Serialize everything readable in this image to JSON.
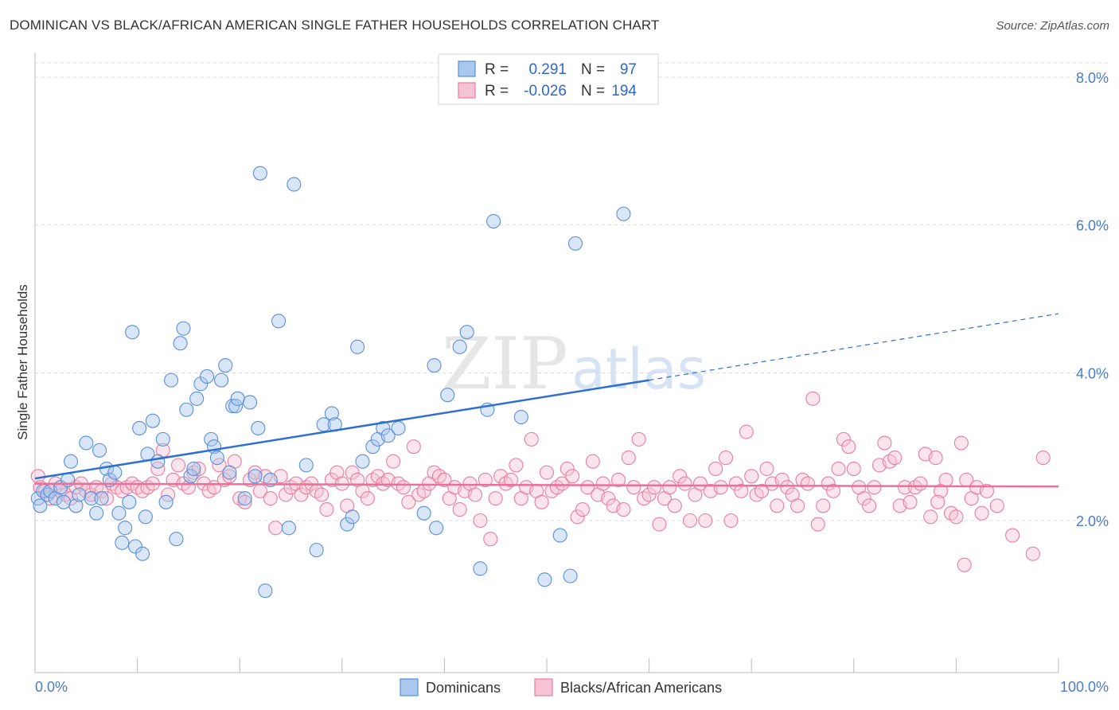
{
  "header": {
    "title": "DOMINICAN VS BLACK/AFRICAN AMERICAN SINGLE FATHER HOUSEHOLDS CORRELATION CHART",
    "source": "Source: ZipAtlas.com"
  },
  "legend_top": {
    "rows": [
      {
        "r_label": "R =",
        "r_value": "0.291",
        "n_label": "N =",
        "n_value": "97"
      },
      {
        "r_label": "R =",
        "r_value": "-0.026",
        "n_label": "N =",
        "n_value": "194"
      }
    ]
  },
  "watermark": {
    "zip": "ZIP",
    "atlas": "atlas"
  },
  "colors": {
    "blue_fill": "#aac8ee",
    "blue_stroke": "#5b8fd8",
    "blue_line": "#2f6fd0",
    "pink_fill": "#f6c3d3",
    "pink_stroke": "#e87ea0",
    "pink_line": "#e8709a",
    "grid": "#dcdcdc",
    "tick_text": "#4a7cc9"
  },
  "chart_data": {
    "type": "scatter",
    "title": "DOMINICAN VS BLACK/AFRICAN AMERICAN SINGLE FATHER HOUSEHOLDS CORRELATION CHART",
    "xlabel": "",
    "ylabel": "Single Father Households",
    "xlim": [
      0,
      100
    ],
    "ylim": [
      0,
      8.5
    ],
    "y_ticks": [
      2,
      4,
      6,
      8
    ],
    "y_tick_labels": [
      "2.0%",
      "4.0%",
      "6.0%",
      "8.0%"
    ],
    "x_tick_labels": [
      "0.0%",
      "100.0%"
    ],
    "grid": "horizontal dashed",
    "legend": "bottom-center",
    "series": [
      {
        "name": "Dominicans",
        "trend": {
          "x": [
            0,
            60
          ],
          "y": [
            2.57,
            3.9
          ],
          "dashed_extension_to": [
            100,
            4.8
          ]
        },
        "points": [
          [
            0.3,
            2.3
          ],
          [
            0.5,
            2.2
          ],
          [
            0.8,
            2.4
          ],
          [
            1.2,
            2.35
          ],
          [
            1.5,
            2.4
          ],
          [
            2.0,
            2.3
          ],
          [
            2.5,
            2.45
          ],
          [
            2.8,
            2.25
          ],
          [
            3.2,
            2.55
          ],
          [
            3.5,
            2.8
          ],
          [
            4.0,
            2.2
          ],
          [
            4.3,
            2.35
          ],
          [
            5.0,
            3.05
          ],
          [
            5.5,
            2.3
          ],
          [
            6.0,
            2.1
          ],
          [
            6.3,
            2.95
          ],
          [
            6.5,
            2.3
          ],
          [
            7.0,
            2.7
          ],
          [
            7.3,
            2.55
          ],
          [
            7.8,
            2.65
          ],
          [
            8.2,
            2.1
          ],
          [
            8.5,
            1.7
          ],
          [
            8.8,
            1.9
          ],
          [
            9.2,
            2.25
          ],
          [
            9.5,
            4.55
          ],
          [
            9.8,
            1.65
          ],
          [
            10.2,
            3.25
          ],
          [
            10.5,
            1.55
          ],
          [
            10.8,
            2.05
          ],
          [
            11.0,
            2.9
          ],
          [
            11.5,
            3.35
          ],
          [
            12.0,
            2.8
          ],
          [
            12.5,
            3.1
          ],
          [
            12.8,
            2.25
          ],
          [
            13.3,
            3.9
          ],
          [
            13.8,
            1.75
          ],
          [
            14.2,
            4.4
          ],
          [
            14.5,
            4.6
          ],
          [
            14.8,
            3.5
          ],
          [
            15.2,
            2.6
          ],
          [
            15.5,
            2.7
          ],
          [
            15.8,
            3.65
          ],
          [
            16.2,
            3.85
          ],
          [
            16.8,
            3.95
          ],
          [
            17.2,
            3.1
          ],
          [
            17.5,
            3.0
          ],
          [
            17.8,
            2.85
          ],
          [
            18.2,
            3.9
          ],
          [
            18.6,
            4.1
          ],
          [
            19.0,
            2.65
          ],
          [
            19.3,
            3.55
          ],
          [
            19.6,
            3.55
          ],
          [
            19.8,
            3.65
          ],
          [
            20.5,
            2.3
          ],
          [
            21.0,
            3.6
          ],
          [
            21.5,
            2.6
          ],
          [
            21.8,
            3.25
          ],
          [
            22.0,
            6.7
          ],
          [
            22.5,
            1.05
          ],
          [
            23.0,
            2.55
          ],
          [
            23.8,
            4.7
          ],
          [
            24.8,
            1.9
          ],
          [
            25.3,
            6.55
          ],
          [
            26.5,
            2.75
          ],
          [
            27.5,
            1.6
          ],
          [
            28.2,
            3.3
          ],
          [
            29.0,
            3.45
          ],
          [
            29.3,
            3.3
          ],
          [
            30.5,
            1.95
          ],
          [
            31.0,
            2.05
          ],
          [
            31.5,
            4.35
          ],
          [
            32.0,
            2.8
          ],
          [
            33.0,
            3.0
          ],
          [
            33.5,
            3.1
          ],
          [
            34.0,
            3.25
          ],
          [
            34.5,
            3.15
          ],
          [
            35.5,
            3.25
          ],
          [
            38.0,
            2.1
          ],
          [
            39.0,
            4.1
          ],
          [
            39.2,
            1.9
          ],
          [
            40.3,
            3.7
          ],
          [
            41.5,
            4.35
          ],
          [
            42.2,
            4.55
          ],
          [
            43.5,
            1.35
          ],
          [
            44.2,
            3.5
          ],
          [
            44.8,
            6.05
          ],
          [
            47.5,
            3.4
          ],
          [
            49.8,
            1.2
          ],
          [
            51.3,
            1.8
          ],
          [
            52.3,
            1.25
          ],
          [
            52.8,
            5.75
          ],
          [
            57.5,
            6.15
          ]
        ]
      },
      {
        "name": "Blacks/African Americans",
        "trend": {
          "x": [
            0,
            100
          ],
          "y": [
            2.5,
            2.46
          ]
        },
        "points": [
          [
            0.3,
            2.6
          ],
          [
            0.5,
            2.45
          ],
          [
            1.0,
            2.4
          ],
          [
            1.5,
            2.3
          ],
          [
            2.0,
            2.5
          ],
          [
            2.5,
            2.4
          ],
          [
            3.0,
            2.35
          ],
          [
            3.5,
            2.3
          ],
          [
            4.0,
            2.45
          ],
          [
            4.5,
            2.5
          ],
          [
            5.0,
            2.4
          ],
          [
            5.5,
            2.35
          ],
          [
            6.0,
            2.45
          ],
          [
            6.5,
            2.4
          ],
          [
            7.0,
            2.3
          ],
          [
            7.5,
            2.5
          ],
          [
            8.0,
            2.45
          ],
          [
            8.5,
            2.4
          ],
          [
            9.0,
            2.45
          ],
          [
            9.5,
            2.5
          ],
          [
            10.0,
            2.45
          ],
          [
            10.5,
            2.4
          ],
          [
            11.0,
            2.45
          ],
          [
            11.5,
            2.5
          ],
          [
            12.0,
            2.7
          ],
          [
            12.5,
            2.95
          ],
          [
            13.0,
            2.35
          ],
          [
            13.5,
            2.55
          ],
          [
            14.0,
            2.75
          ],
          [
            14.5,
            2.5
          ],
          [
            15.0,
            2.45
          ],
          [
            15.5,
            2.65
          ],
          [
            16.0,
            2.7
          ],
          [
            16.5,
            2.5
          ],
          [
            17.0,
            2.4
          ],
          [
            17.5,
            2.45
          ],
          [
            18.0,
            2.75
          ],
          [
            18.5,
            2.55
          ],
          [
            19.0,
            2.6
          ],
          [
            19.5,
            2.8
          ],
          [
            20.0,
            2.3
          ],
          [
            20.5,
            2.25
          ],
          [
            21.0,
            2.55
          ],
          [
            21.5,
            2.65
          ],
          [
            22.0,
            2.4
          ],
          [
            22.5,
            2.6
          ],
          [
            23.0,
            2.3
          ],
          [
            23.5,
            1.9
          ],
          [
            24.0,
            2.6
          ],
          [
            24.5,
            2.35
          ],
          [
            25.0,
            2.45
          ],
          [
            25.5,
            2.5
          ],
          [
            26.0,
            2.35
          ],
          [
            26.5,
            2.45
          ],
          [
            27.0,
            2.5
          ],
          [
            27.5,
            2.4
          ],
          [
            28.0,
            2.35
          ],
          [
            28.5,
            2.15
          ],
          [
            29.0,
            2.55
          ],
          [
            29.5,
            2.65
          ],
          [
            30.0,
            2.5
          ],
          [
            30.5,
            2.2
          ],
          [
            31.0,
            2.65
          ],
          [
            31.5,
            2.55
          ],
          [
            32.0,
            2.4
          ],
          [
            32.5,
            2.3
          ],
          [
            33.0,
            2.55
          ],
          [
            33.5,
            2.6
          ],
          [
            34.0,
            2.5
          ],
          [
            34.5,
            2.55
          ],
          [
            35.0,
            2.8
          ],
          [
            35.5,
            2.5
          ],
          [
            36.0,
            2.45
          ],
          [
            36.5,
            2.25
          ],
          [
            37.0,
            3.0
          ],
          [
            37.5,
            2.35
          ],
          [
            38.0,
            2.4
          ],
          [
            38.5,
            2.5
          ],
          [
            39.0,
            2.65
          ],
          [
            39.5,
            2.6
          ],
          [
            40.0,
            2.55
          ],
          [
            40.5,
            2.3
          ],
          [
            41.0,
            2.45
          ],
          [
            41.5,
            2.15
          ],
          [
            42.0,
            2.4
          ],
          [
            42.5,
            2.5
          ],
          [
            43.0,
            2.35
          ],
          [
            43.5,
            2.0
          ],
          [
            44.0,
            2.55
          ],
          [
            44.5,
            1.75
          ],
          [
            45.0,
            2.3
          ],
          [
            45.5,
            2.6
          ],
          [
            46.0,
            2.5
          ],
          [
            46.5,
            2.55
          ],
          [
            47.0,
            2.75
          ],
          [
            47.5,
            2.3
          ],
          [
            48.0,
            2.45
          ],
          [
            48.5,
            3.1
          ],
          [
            49.0,
            2.4
          ],
          [
            49.5,
            2.25
          ],
          [
            50.0,
            2.65
          ],
          [
            50.5,
            2.4
          ],
          [
            51.0,
            2.45
          ],
          [
            51.5,
            2.5
          ],
          [
            52.0,
            2.7
          ],
          [
            52.5,
            2.6
          ],
          [
            53.0,
            2.05
          ],
          [
            53.5,
            2.15
          ],
          [
            54.0,
            2.45
          ],
          [
            54.5,
            2.8
          ],
          [
            55.0,
            2.35
          ],
          [
            55.5,
            2.5
          ],
          [
            56.0,
            2.3
          ],
          [
            56.5,
            2.2
          ],
          [
            57.0,
            2.55
          ],
          [
            57.5,
            2.15
          ],
          [
            58.0,
            2.85
          ],
          [
            58.5,
            2.45
          ],
          [
            59.0,
            3.1
          ],
          [
            59.5,
            2.3
          ],
          [
            60.0,
            2.35
          ],
          [
            60.5,
            2.45
          ],
          [
            61.0,
            1.95
          ],
          [
            61.5,
            2.3
          ],
          [
            62.0,
            2.45
          ],
          [
            62.5,
            2.2
          ],
          [
            63.0,
            2.6
          ],
          [
            63.5,
            2.5
          ],
          [
            64.0,
            2.0
          ],
          [
            64.5,
            2.35
          ],
          [
            65.0,
            2.5
          ],
          [
            65.5,
            2.0
          ],
          [
            66.0,
            2.4
          ],
          [
            66.5,
            2.7
          ],
          [
            67.0,
            2.45
          ],
          [
            67.5,
            2.85
          ],
          [
            68.0,
            2.0
          ],
          [
            68.5,
            2.5
          ],
          [
            69.0,
            2.4
          ],
          [
            69.5,
            3.2
          ],
          [
            70.0,
            2.6
          ],
          [
            70.5,
            2.35
          ],
          [
            71.0,
            2.4
          ],
          [
            71.5,
            2.7
          ],
          [
            72.0,
            2.5
          ],
          [
            72.5,
            2.2
          ],
          [
            73.0,
            2.55
          ],
          [
            73.5,
            2.45
          ],
          [
            74.0,
            2.35
          ],
          [
            74.5,
            2.2
          ],
          [
            75.0,
            2.55
          ],
          [
            75.5,
            2.5
          ],
          [
            76.0,
            3.65
          ],
          [
            76.5,
            1.95
          ],
          [
            77.0,
            2.2
          ],
          [
            77.5,
            2.5
          ],
          [
            78.0,
            2.4
          ],
          [
            78.5,
            2.7
          ],
          [
            79.0,
            3.1
          ],
          [
            79.5,
            3.0
          ],
          [
            80.0,
            2.7
          ],
          [
            80.5,
            2.45
          ],
          [
            81.0,
            2.3
          ],
          [
            81.5,
            2.2
          ],
          [
            82.0,
            2.45
          ],
          [
            82.5,
            2.75
          ],
          [
            83.0,
            3.05
          ],
          [
            83.5,
            2.8
          ],
          [
            84.0,
            2.85
          ],
          [
            84.5,
            2.2
          ],
          [
            85.0,
            2.45
          ],
          [
            85.5,
            2.25
          ],
          [
            86.0,
            2.45
          ],
          [
            86.5,
            2.5
          ],
          [
            87.0,
            2.9
          ],
          [
            87.5,
            2.05
          ],
          [
            88.0,
            2.85
          ],
          [
            88.5,
            2.4
          ],
          [
            89.0,
            2.55
          ],
          [
            89.5,
            2.1
          ],
          [
            90.0,
            2.05
          ],
          [
            90.5,
            3.05
          ],
          [
            91.0,
            2.55
          ],
          [
            91.5,
            2.3
          ],
          [
            92.0,
            2.45
          ],
          [
            92.5,
            2.1
          ],
          [
            93.0,
            2.4
          ],
          [
            94.0,
            2.2
          ],
          [
            95.5,
            1.8
          ],
          [
            97.5,
            1.55
          ],
          [
            98.5,
            2.85
          ],
          [
            90.8,
            1.4
          ],
          [
            88.2,
            2.25
          ]
        ]
      }
    ]
  }
}
